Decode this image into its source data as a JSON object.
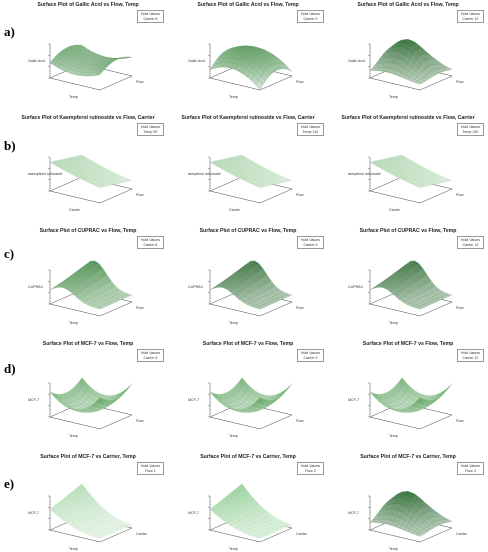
{
  "rows": [
    {
      "label": "a)",
      "variant": "flow-temp",
      "panels": [
        {
          "title": "Surface Plot of Gallic Acid vs Flow, Temp",
          "hold_header": "Hold Values",
          "hold_value": "Carrier  6",
          "zlabel": "Gallic Acid",
          "xlabel": "Temp",
          "ylabel": "Flow",
          "shape": "saddle",
          "shade": "#2e7d32"
        },
        {
          "title": "Surface Plot of Gallic Acid vs Flow, Temp",
          "hold_header": "Hold Values",
          "hold_value": "Carrier  9",
          "zlabel": "Gallic Acid",
          "xlabel": "Temp",
          "ylabel": "Flow",
          "shape": "dome",
          "shade": "#2e7d32"
        },
        {
          "title": "Surface Plot of Gallic Acid vs Flow, Temp",
          "hold_header": "Hold Values",
          "hold_value": "Carrier  12",
          "zlabel": "Gallic Acid",
          "xlabel": "Temp",
          "ylabel": "Flow",
          "shape": "peak",
          "shade": "#1b5e20"
        }
      ]
    },
    {
      "label": "b)",
      "variant": "flow-carrier",
      "panels": [
        {
          "title": "Surface Plot of Kaempferol rutinoside vs Flow, Carrier",
          "hold_header": "Hold Values",
          "hold_value": "Temp  90",
          "zlabel": "kaempferol rutinoside",
          "xlabel": "Carrier",
          "ylabel": "Flow",
          "shape": "slope",
          "shade": "#9ccc9c"
        },
        {
          "title": "Surface Plot of Kaempferol rutinoside vs Flow, Carrier",
          "hold_header": "Hold Values",
          "hold_value": "Temp  110",
          "zlabel": "aempferol rutinoside",
          "xlabel": "Carrier",
          "ylabel": "Flow",
          "shape": "slope",
          "shade": "#9ccc9c"
        },
        {
          "title": "Surface Plot of Kaempferol rutinoside vs Flow, Carrier",
          "hold_header": "Hold Values",
          "hold_value": "Temp  130",
          "zlabel": "aempferol rutinoside",
          "xlabel": "Carrier",
          "ylabel": "Flow",
          "shape": "slope",
          "shade": "#9ccc9c"
        }
      ]
    },
    {
      "label": "c)",
      "variant": "flow-temp",
      "panels": [
        {
          "title": "Surface Plot of CUPRAC vs Flow, Temp",
          "hold_header": "Hold Values",
          "hold_value": "Carrier  6",
          "zlabel": "CUPRAC",
          "xlabel": "Temp",
          "ylabel": "Flow",
          "shape": "ridge",
          "shade": "#2e7d32"
        },
        {
          "title": "Surface Plot of CUPRAC vs Flow, Temp",
          "hold_header": "Hold Values",
          "hold_value": "Carrier  9",
          "zlabel": "CUPRAC",
          "xlabel": "Temp",
          "ylabel": "Flow",
          "shape": "ridge",
          "shade": "#1b5e20"
        },
        {
          "title": "Surface Plot of CUPRAC vs Flow, Temp",
          "hold_header": "Hold Values",
          "hold_value": "Carrier  12",
          "zlabel": "CUPRAC",
          "xlabel": "Temp",
          "ylabel": "Flow",
          "shape": "ridge",
          "shade": "#1b5e20"
        }
      ]
    },
    {
      "label": "d)",
      "variant": "flow-temp",
      "panels": [
        {
          "title": "Surface Plot of MCF-7 vs Flow, Temp",
          "hold_header": "Hold Values",
          "hold_value": "Carrier  6",
          "zlabel": "MCF-7",
          "xlabel": "Temp",
          "ylabel": "Flow",
          "shape": "bowl",
          "shade": "#388e3c"
        },
        {
          "title": "Surface Plot of MCF-7 vs Flow, Temp",
          "hold_header": "Hold Values",
          "hold_value": "Carrier  9",
          "zlabel": "MCF-7",
          "xlabel": "Temp",
          "ylabel": "Flow",
          "shape": "bowl",
          "shade": "#388e3c"
        },
        {
          "title": "Surface Plot of MCF-7 vs Flow, Temp",
          "hold_header": "Hold Values",
          "hold_value": "Carrier  12",
          "zlabel": "MCF-7",
          "xlabel": "Temp",
          "ylabel": "Flow",
          "shape": "bowl",
          "shade": "#388e3c"
        }
      ]
    },
    {
      "label": "e)",
      "variant": "carrier-temp",
      "panels": [
        {
          "title": "Surface Plot of MCF-7 vs Carrier, Temp",
          "hold_header": "Hold Values",
          "hold_value": "Flow  1",
          "zlabel": "MCF-7",
          "xlabel": "Temp",
          "ylabel": "Carrier",
          "shape": "corner",
          "shade": "#a5d6a7"
        },
        {
          "title": "Surface Plot of MCF-7 vs Carrier, Temp",
          "hold_header": "Hold Values",
          "hold_value": "Flow  2",
          "zlabel": "MCF-7",
          "xlabel": "Temp",
          "ylabel": "Carrier",
          "shape": "corner",
          "shade": "#81c784"
        },
        {
          "title": "Surface Plot of MCF-7 vs Carrier, Temp",
          "hold_header": "Hold Values",
          "hold_value": "Flow  3",
          "zlabel": "MCF-7",
          "xlabel": "Temp",
          "ylabel": "Carrier",
          "shape": "peak",
          "shade": "#1b5e20"
        }
      ]
    }
  ],
  "chart_data": [
    {
      "type": "surface",
      "title": "Surface Plot of Gallic Acid vs Flow, Temp",
      "series": [
        {
          "name": "Carrier 6"
        },
        {
          "name": "Carrier 9"
        },
        {
          "name": "Carrier 12"
        }
      ],
      "xlabel": "Temp",
      "ylabel": "Flow",
      "zlabel": "Gallic Acid"
    },
    {
      "type": "surface",
      "title": "Surface Plot of Kaempferol rutinoside vs Flow, Carrier",
      "series": [
        {
          "name": "Temp 90"
        },
        {
          "name": "Temp 110"
        },
        {
          "name": "Temp 130"
        }
      ],
      "xlabel": "Carrier",
      "ylabel": "Flow",
      "zlabel": "kaempferol rutinoside"
    },
    {
      "type": "surface",
      "title": "Surface Plot of CUPRAC vs Flow, Temp",
      "series": [
        {
          "name": "Carrier 6"
        },
        {
          "name": "Carrier 9"
        },
        {
          "name": "Carrier 12"
        }
      ],
      "xlabel": "Temp",
      "ylabel": "Flow",
      "zlabel": "CUPRAC"
    },
    {
      "type": "surface",
      "title": "Surface Plot of MCF-7 vs Flow, Temp",
      "series": [
        {
          "name": "Carrier 6"
        },
        {
          "name": "Carrier 9"
        },
        {
          "name": "Carrier 12"
        }
      ],
      "xlabel": "Temp",
      "ylabel": "Flow",
      "zlabel": "MCF-7"
    },
    {
      "type": "surface",
      "title": "Surface Plot of MCF-7 vs Carrier, Temp",
      "series": [
        {
          "name": "Flow 1"
        },
        {
          "name": "Flow 2"
        },
        {
          "name": "Flow 3"
        }
      ],
      "xlabel": "Temp",
      "ylabel": "Carrier",
      "zlabel": "MCF-7"
    }
  ]
}
